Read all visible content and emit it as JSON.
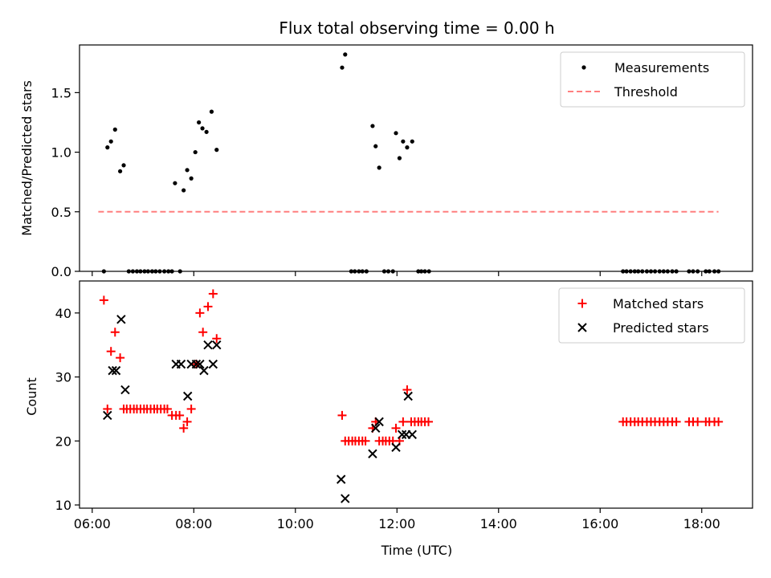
{
  "chart_data": [
    {
      "type": "scatter",
      "title": "Flux total observing time = 0.00 h",
      "ylabel": "Matched/Predicted stars",
      "xlabel": "",
      "xlim": [
        5.75,
        19.0
      ],
      "ylim": [
        0.0,
        1.9
      ],
      "x_ticks": [
        6,
        8,
        10,
        12,
        14,
        16,
        18
      ],
      "x_tick_labels_visible": false,
      "y_ticks": [
        0.0,
        0.5,
        1.0,
        1.5
      ],
      "y_tick_labels": [
        "0.0",
        "0.5",
        "1.0",
        "1.5"
      ],
      "legend": {
        "placement": "top-right",
        "entries": [
          "Measurements",
          "Threshold"
        ]
      },
      "series": [
        {
          "name": "Measurements",
          "kind": "points",
          "color": "#000000",
          "points": [
            [
              6.23,
              0.0
            ],
            [
              6.3,
              1.04
            ],
            [
              6.37,
              1.09
            ],
            [
              6.45,
              1.19
            ],
            [
              6.55,
              0.84
            ],
            [
              6.62,
              0.89
            ],
            [
              6.72,
              0.0
            ],
            [
              6.8,
              0.0
            ],
            [
              6.88,
              0.0
            ],
            [
              6.95,
              0.0
            ],
            [
              7.03,
              0.0
            ],
            [
              7.1,
              0.0
            ],
            [
              7.18,
              0.0
            ],
            [
              7.25,
              0.0
            ],
            [
              7.33,
              0.0
            ],
            [
              7.42,
              0.0
            ],
            [
              7.5,
              0.0
            ],
            [
              7.57,
              0.0
            ],
            [
              7.63,
              0.74
            ],
            [
              7.73,
              0.0
            ],
            [
              7.8,
              0.68
            ],
            [
              7.87,
              0.85
            ],
            [
              7.95,
              0.78
            ],
            [
              8.03,
              1.0
            ],
            [
              8.1,
              1.25
            ],
            [
              8.17,
              1.2
            ],
            [
              8.25,
              1.17
            ],
            [
              8.35,
              1.34
            ],
            [
              8.45,
              1.02
            ],
            [
              10.92,
              1.71
            ],
            [
              10.98,
              1.82
            ],
            [
              11.1,
              0.0
            ],
            [
              11.17,
              0.0
            ],
            [
              11.25,
              0.0
            ],
            [
              11.32,
              0.0
            ],
            [
              11.4,
              0.0
            ],
            [
              11.52,
              1.22
            ],
            [
              11.58,
              1.05
            ],
            [
              11.65,
              0.87
            ],
            [
              11.75,
              0.0
            ],
            [
              11.83,
              0.0
            ],
            [
              11.92,
              0.0
            ],
            [
              11.98,
              1.16
            ],
            [
              12.05,
              0.95
            ],
            [
              12.12,
              1.09
            ],
            [
              12.2,
              1.04
            ],
            [
              12.3,
              1.09
            ],
            [
              12.42,
              0.0
            ],
            [
              12.48,
              0.0
            ],
            [
              12.55,
              0.0
            ],
            [
              12.63,
              0.0
            ],
            [
              16.45,
              0.0
            ],
            [
              16.52,
              0.0
            ],
            [
              16.6,
              0.0
            ],
            [
              16.68,
              0.0
            ],
            [
              16.75,
              0.0
            ],
            [
              16.83,
              0.0
            ],
            [
              16.92,
              0.0
            ],
            [
              17.0,
              0.0
            ],
            [
              17.08,
              0.0
            ],
            [
              17.17,
              0.0
            ],
            [
              17.25,
              0.0
            ],
            [
              17.33,
              0.0
            ],
            [
              17.42,
              0.0
            ],
            [
              17.5,
              0.0
            ],
            [
              17.75,
              0.0
            ],
            [
              17.83,
              0.0
            ],
            [
              17.92,
              0.0
            ],
            [
              18.08,
              0.0
            ],
            [
              18.15,
              0.0
            ],
            [
              18.25,
              0.0
            ],
            [
              18.33,
              0.0
            ]
          ]
        },
        {
          "name": "Threshold",
          "kind": "dashed-line",
          "color": "#ff7f7f",
          "points": [
            [
              6.12,
              0.5
            ],
            [
              18.33,
              0.5
            ]
          ]
        }
      ]
    },
    {
      "type": "scatter",
      "title": "",
      "xlabel": "Time (UTC)",
      "ylabel": "Count",
      "xlim": [
        5.75,
        19.0
      ],
      "ylim": [
        9.5,
        45.0
      ],
      "x_ticks": [
        6,
        8,
        10,
        12,
        14,
        16,
        18
      ],
      "x_tick_labels": [
        "06:00",
        "08:00",
        "10:00",
        "12:00",
        "14:00",
        "16:00",
        "18:00"
      ],
      "y_ticks": [
        10,
        20,
        30,
        40
      ],
      "y_tick_labels": [
        "10",
        "20",
        "30",
        "40"
      ],
      "legend": {
        "placement": "top-right",
        "entries": [
          "Matched stars",
          "Predicted stars"
        ]
      },
      "series": [
        {
          "name": "Matched stars",
          "kind": "plus",
          "color": "#ff0000",
          "points": [
            [
              6.23,
              42
            ],
            [
              6.3,
              25
            ],
            [
              6.37,
              34
            ],
            [
              6.45,
              37
            ],
            [
              6.55,
              33
            ],
            [
              6.62,
              25
            ],
            [
              6.68,
              25
            ],
            [
              6.75,
              25
            ],
            [
              6.82,
              25
            ],
            [
              6.88,
              25
            ],
            [
              6.95,
              25
            ],
            [
              7.02,
              25
            ],
            [
              7.08,
              25
            ],
            [
              7.15,
              25
            ],
            [
              7.22,
              25
            ],
            [
              7.28,
              25
            ],
            [
              7.35,
              25
            ],
            [
              7.42,
              25
            ],
            [
              7.48,
              25
            ],
            [
              7.57,
              24
            ],
            [
              7.65,
              24
            ],
            [
              7.72,
              24
            ],
            [
              7.8,
              22
            ],
            [
              7.87,
              23
            ],
            [
              7.95,
              25
            ],
            [
              8.05,
              32
            ],
            [
              8.12,
              40
            ],
            [
              8.18,
              37
            ],
            [
              8.28,
              41
            ],
            [
              8.38,
              43
            ],
            [
              8.45,
              36
            ],
            [
              10.92,
              24
            ],
            [
              10.98,
              20
            ],
            [
              11.05,
              20
            ],
            [
              11.12,
              20
            ],
            [
              11.18,
              20
            ],
            [
              11.25,
              20
            ],
            [
              11.32,
              20
            ],
            [
              11.38,
              20
            ],
            [
              11.52,
              22
            ],
            [
              11.58,
              23
            ],
            [
              11.65,
              20
            ],
            [
              11.72,
              20
            ],
            [
              11.78,
              20
            ],
            [
              11.85,
              20
            ],
            [
              11.92,
              20
            ],
            [
              11.98,
              22
            ],
            [
              12.05,
              20
            ],
            [
              12.12,
              23
            ],
            [
              12.2,
              28
            ],
            [
              12.28,
              23
            ],
            [
              12.35,
              23
            ],
            [
              12.42,
              23
            ],
            [
              12.48,
              23
            ],
            [
              12.55,
              23
            ],
            [
              12.62,
              23
            ],
            [
              16.45,
              23
            ],
            [
              16.52,
              23
            ],
            [
              16.6,
              23
            ],
            [
              16.68,
              23
            ],
            [
              16.75,
              23
            ],
            [
              16.83,
              23
            ],
            [
              16.92,
              23
            ],
            [
              17.0,
              23
            ],
            [
              17.08,
              23
            ],
            [
              17.17,
              23
            ],
            [
              17.25,
              23
            ],
            [
              17.33,
              23
            ],
            [
              17.42,
              23
            ],
            [
              17.5,
              23
            ],
            [
              17.75,
              23
            ],
            [
              17.83,
              23
            ],
            [
              17.92,
              23
            ],
            [
              18.08,
              23
            ],
            [
              18.15,
              23
            ],
            [
              18.25,
              23
            ],
            [
              18.33,
              23
            ]
          ]
        },
        {
          "name": "Predicted stars",
          "kind": "cross",
          "color": "#000000",
          "points": [
            [
              6.3,
              24
            ],
            [
              6.4,
              31
            ],
            [
              6.47,
              31
            ],
            [
              6.57,
              39
            ],
            [
              6.65,
              28
            ],
            [
              7.65,
              32
            ],
            [
              7.75,
              32
            ],
            [
              7.88,
              27
            ],
            [
              7.95,
              32
            ],
            [
              8.05,
              32
            ],
            [
              8.12,
              32
            ],
            [
              8.2,
              31
            ],
            [
              8.28,
              35
            ],
            [
              8.38,
              32
            ],
            [
              8.45,
              35
            ],
            [
              10.9,
              14
            ],
            [
              10.98,
              11
            ],
            [
              11.52,
              18
            ],
            [
              11.58,
              22
            ],
            [
              11.65,
              23
            ],
            [
              11.98,
              19
            ],
            [
              12.1,
              21
            ],
            [
              12.18,
              21
            ],
            [
              12.22,
              27
            ],
            [
              12.3,
              21
            ]
          ]
        }
      ]
    }
  ]
}
